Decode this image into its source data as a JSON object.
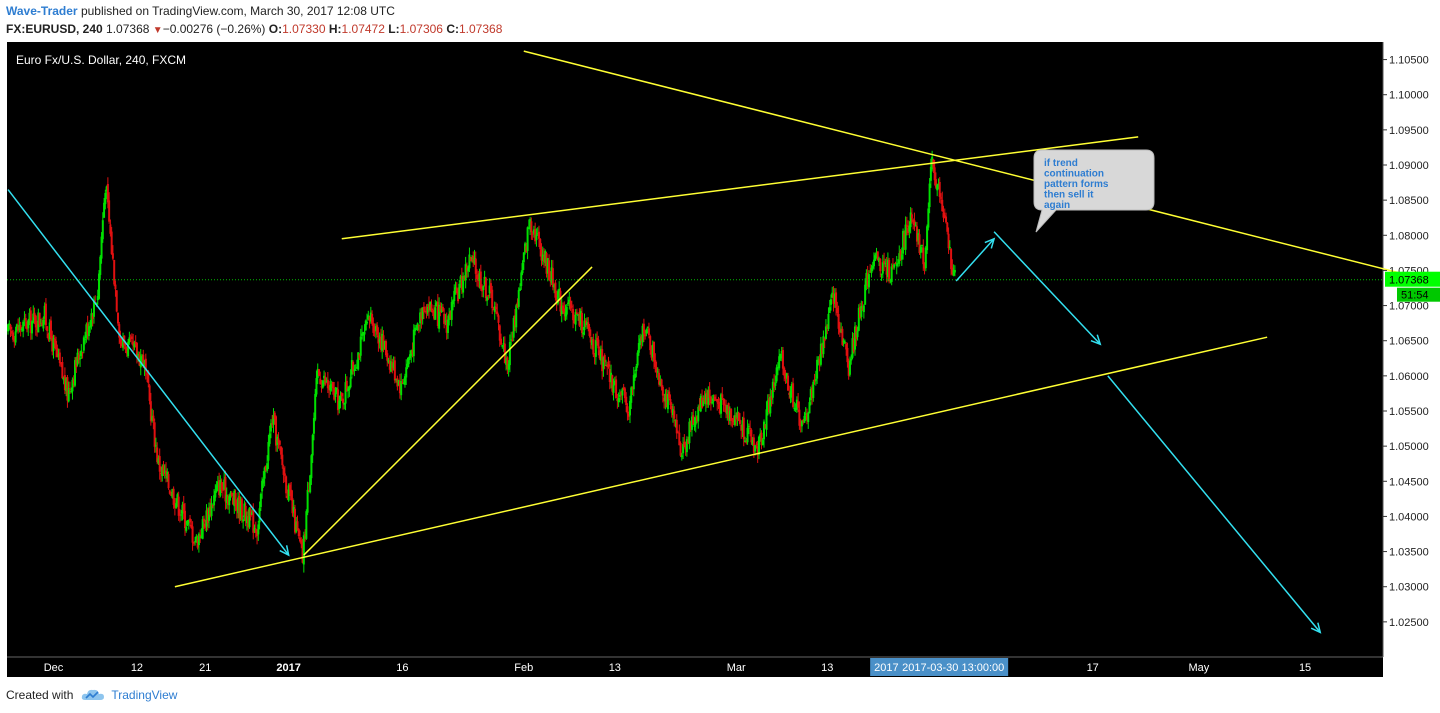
{
  "header": {
    "author": "Wave-Trader",
    "published_text": "published on TradingView.com, March 30, 2017 12:08 UTC",
    "symbol": "FX:EURUSD, 240",
    "last": "1.07368",
    "change_arrow": "▼",
    "change": "−0.00276 (−0.26%)",
    "o_label": "O:",
    "o_value": "1.07330",
    "h_label": "H:",
    "h_value": "1.07472",
    "l_label": "L:",
    "l_value": "1.07306",
    "c_label": "C:",
    "c_value": "1.07368"
  },
  "footer": {
    "created_with": "Created with",
    "brand": "TradingView",
    "brand_icon": "tradingview-cloud-icon"
  },
  "colors": {
    "background": "#000000",
    "up_candle": "#00e000",
    "down_candle": "#e01010",
    "trend_line": "#ffff33",
    "projection_arrow": "#33e0f0",
    "price_label": "#00ff00",
    "crosshair_label": "#4a90c8"
  },
  "chart_data": {
    "type": "candlestick",
    "title": "Euro Fx/U.S. Dollar, 240, FXCM",
    "ylim": [
      1.02,
      1.1075
    ],
    "y_ticks": [
      "1.10500",
      "1.10000",
      "1.09500",
      "1.09000",
      "1.08500",
      "1.08000",
      "1.07500",
      "1.07000",
      "1.06500",
      "1.06000",
      "1.05500",
      "1.05000",
      "1.04500",
      "1.04000",
      "1.03500",
      "1.03000",
      "1.02500"
    ],
    "x_ticks": [
      "Dec",
      "12",
      "21",
      "2017",
      "16",
      "Feb",
      "13",
      "Mar",
      "13",
      "17",
      "May",
      "15"
    ],
    "current_price": "1.07368",
    "countdown": "51:54",
    "crosshair_date": "2017-03-30 13:00:00",
    "crosshair_year": "2017",
    "annotation": "if trend continuation pattern forms then sell it again",
    "swing_points": [
      {
        "date": "2016-11-25",
        "price": 1.066
      },
      {
        "date": "2016-11-30",
        "price": 1.0685
      },
      {
        "date": "2016-12-03",
        "price": 1.0575
      },
      {
        "date": "2016-12-07",
        "price": 1.072
      },
      {
        "date": "2016-12-08",
        "price": 1.0875
      },
      {
        "date": "2016-12-10",
        "price": 1.065
      },
      {
        "date": "2016-12-13",
        "price": 1.0625
      },
      {
        "date": "2016-12-15",
        "price": 1.0475
      },
      {
        "date": "2016-12-20",
        "price": 1.0365
      },
      {
        "date": "2016-12-23",
        "price": 1.0445
      },
      {
        "date": "2016-12-28",
        "price": 1.0385
      },
      {
        "date": "2016-12-30",
        "price": 1.054
      },
      {
        "date": "2017-01-03",
        "price": 1.034
      },
      {
        "date": "2017-01-05",
        "price": 1.0605
      },
      {
        "date": "2017-01-08",
        "price": 1.056
      },
      {
        "date": "2017-01-12",
        "price": 1.0685
      },
      {
        "date": "2017-01-16",
        "price": 1.0585
      },
      {
        "date": "2017-01-19",
        "price": 1.0705
      },
      {
        "date": "2017-01-22",
        "price": 1.0675
      },
      {
        "date": "2017-01-25",
        "price": 1.0765
      },
      {
        "date": "2017-01-28",
        "price": 1.071
      },
      {
        "date": "2017-01-30",
        "price": 1.0615
      },
      {
        "date": "2017-02-02",
        "price": 1.0825
      },
      {
        "date": "2017-02-06",
        "price": 1.0705
      },
      {
        "date": "2017-02-09",
        "price": 1.0675
      },
      {
        "date": "2017-02-13",
        "price": 1.0585
      },
      {
        "date": "2017-02-15",
        "price": 1.0555
      },
      {
        "date": "2017-02-17",
        "price": 1.0675
      },
      {
        "date": "2017-02-22",
        "price": 1.0495
      },
      {
        "date": "2017-02-25",
        "price": 1.0575
      },
      {
        "date": "2017-03-01",
        "price": 1.0545
      },
      {
        "date": "2017-03-04",
        "price": 1.0495
      },
      {
        "date": "2017-03-07",
        "price": 1.0625
      },
      {
        "date": "2017-03-10",
        "price": 1.0525
      },
      {
        "date": "2017-03-14",
        "price": 1.0715
      },
      {
        "date": "2017-03-16",
        "price": 1.0615
      },
      {
        "date": "2017-03-19",
        "price": 1.0765
      },
      {
        "date": "2017-03-22",
        "price": 1.0745
      },
      {
        "date": "2017-03-24",
        "price": 1.0825
      },
      {
        "date": "2017-03-26",
        "price": 1.0765
      },
      {
        "date": "2017-03-27",
        "price": 1.0905
      },
      {
        "date": "2017-03-28",
        "price": 1.0855
      },
      {
        "date": "2017-03-30",
        "price": 1.07368
      }
    ],
    "trend_lines": [
      {
        "from": {
          "date": "2016-12-17",
          "price": 1.03
        },
        "to": {
          "date": "2017-05-10",
          "price": 1.0655
        }
      },
      {
        "from": {
          "date": "2017-01-08",
          "price": 1.0795
        },
        "to": {
          "date": "2017-04-23",
          "price": 1.094
        }
      },
      {
        "from": {
          "date": "2017-02-01",
          "price": 1.1062
        },
        "to": {
          "date": "2017-05-28",
          "price": 1.0745
        }
      },
      {
        "from": {
          "date": "2017-01-03",
          "price": 1.0345
        },
        "to": {
          "date": "2017-02-10",
          "price": 1.0755
        }
      }
    ],
    "projection_arrows": [
      {
        "from": {
          "date": "2016-11-25",
          "price": 1.0865
        },
        "to": {
          "date": "2017-01-01",
          "price": 1.0345
        }
      },
      {
        "from": {
          "date": "2017-03-30",
          "price": 1.0735
        },
        "to": {
          "date": "2017-04-04",
          "price": 1.0795
        }
      },
      {
        "from": {
          "date": "2017-04-04",
          "price": 1.0805
        },
        "to": {
          "date": "2017-04-18",
          "price": 1.0645
        }
      },
      {
        "from": {
          "date": "2017-04-19",
          "price": 1.06
        },
        "to": {
          "date": "2017-05-17",
          "price": 1.0235
        }
      }
    ]
  }
}
